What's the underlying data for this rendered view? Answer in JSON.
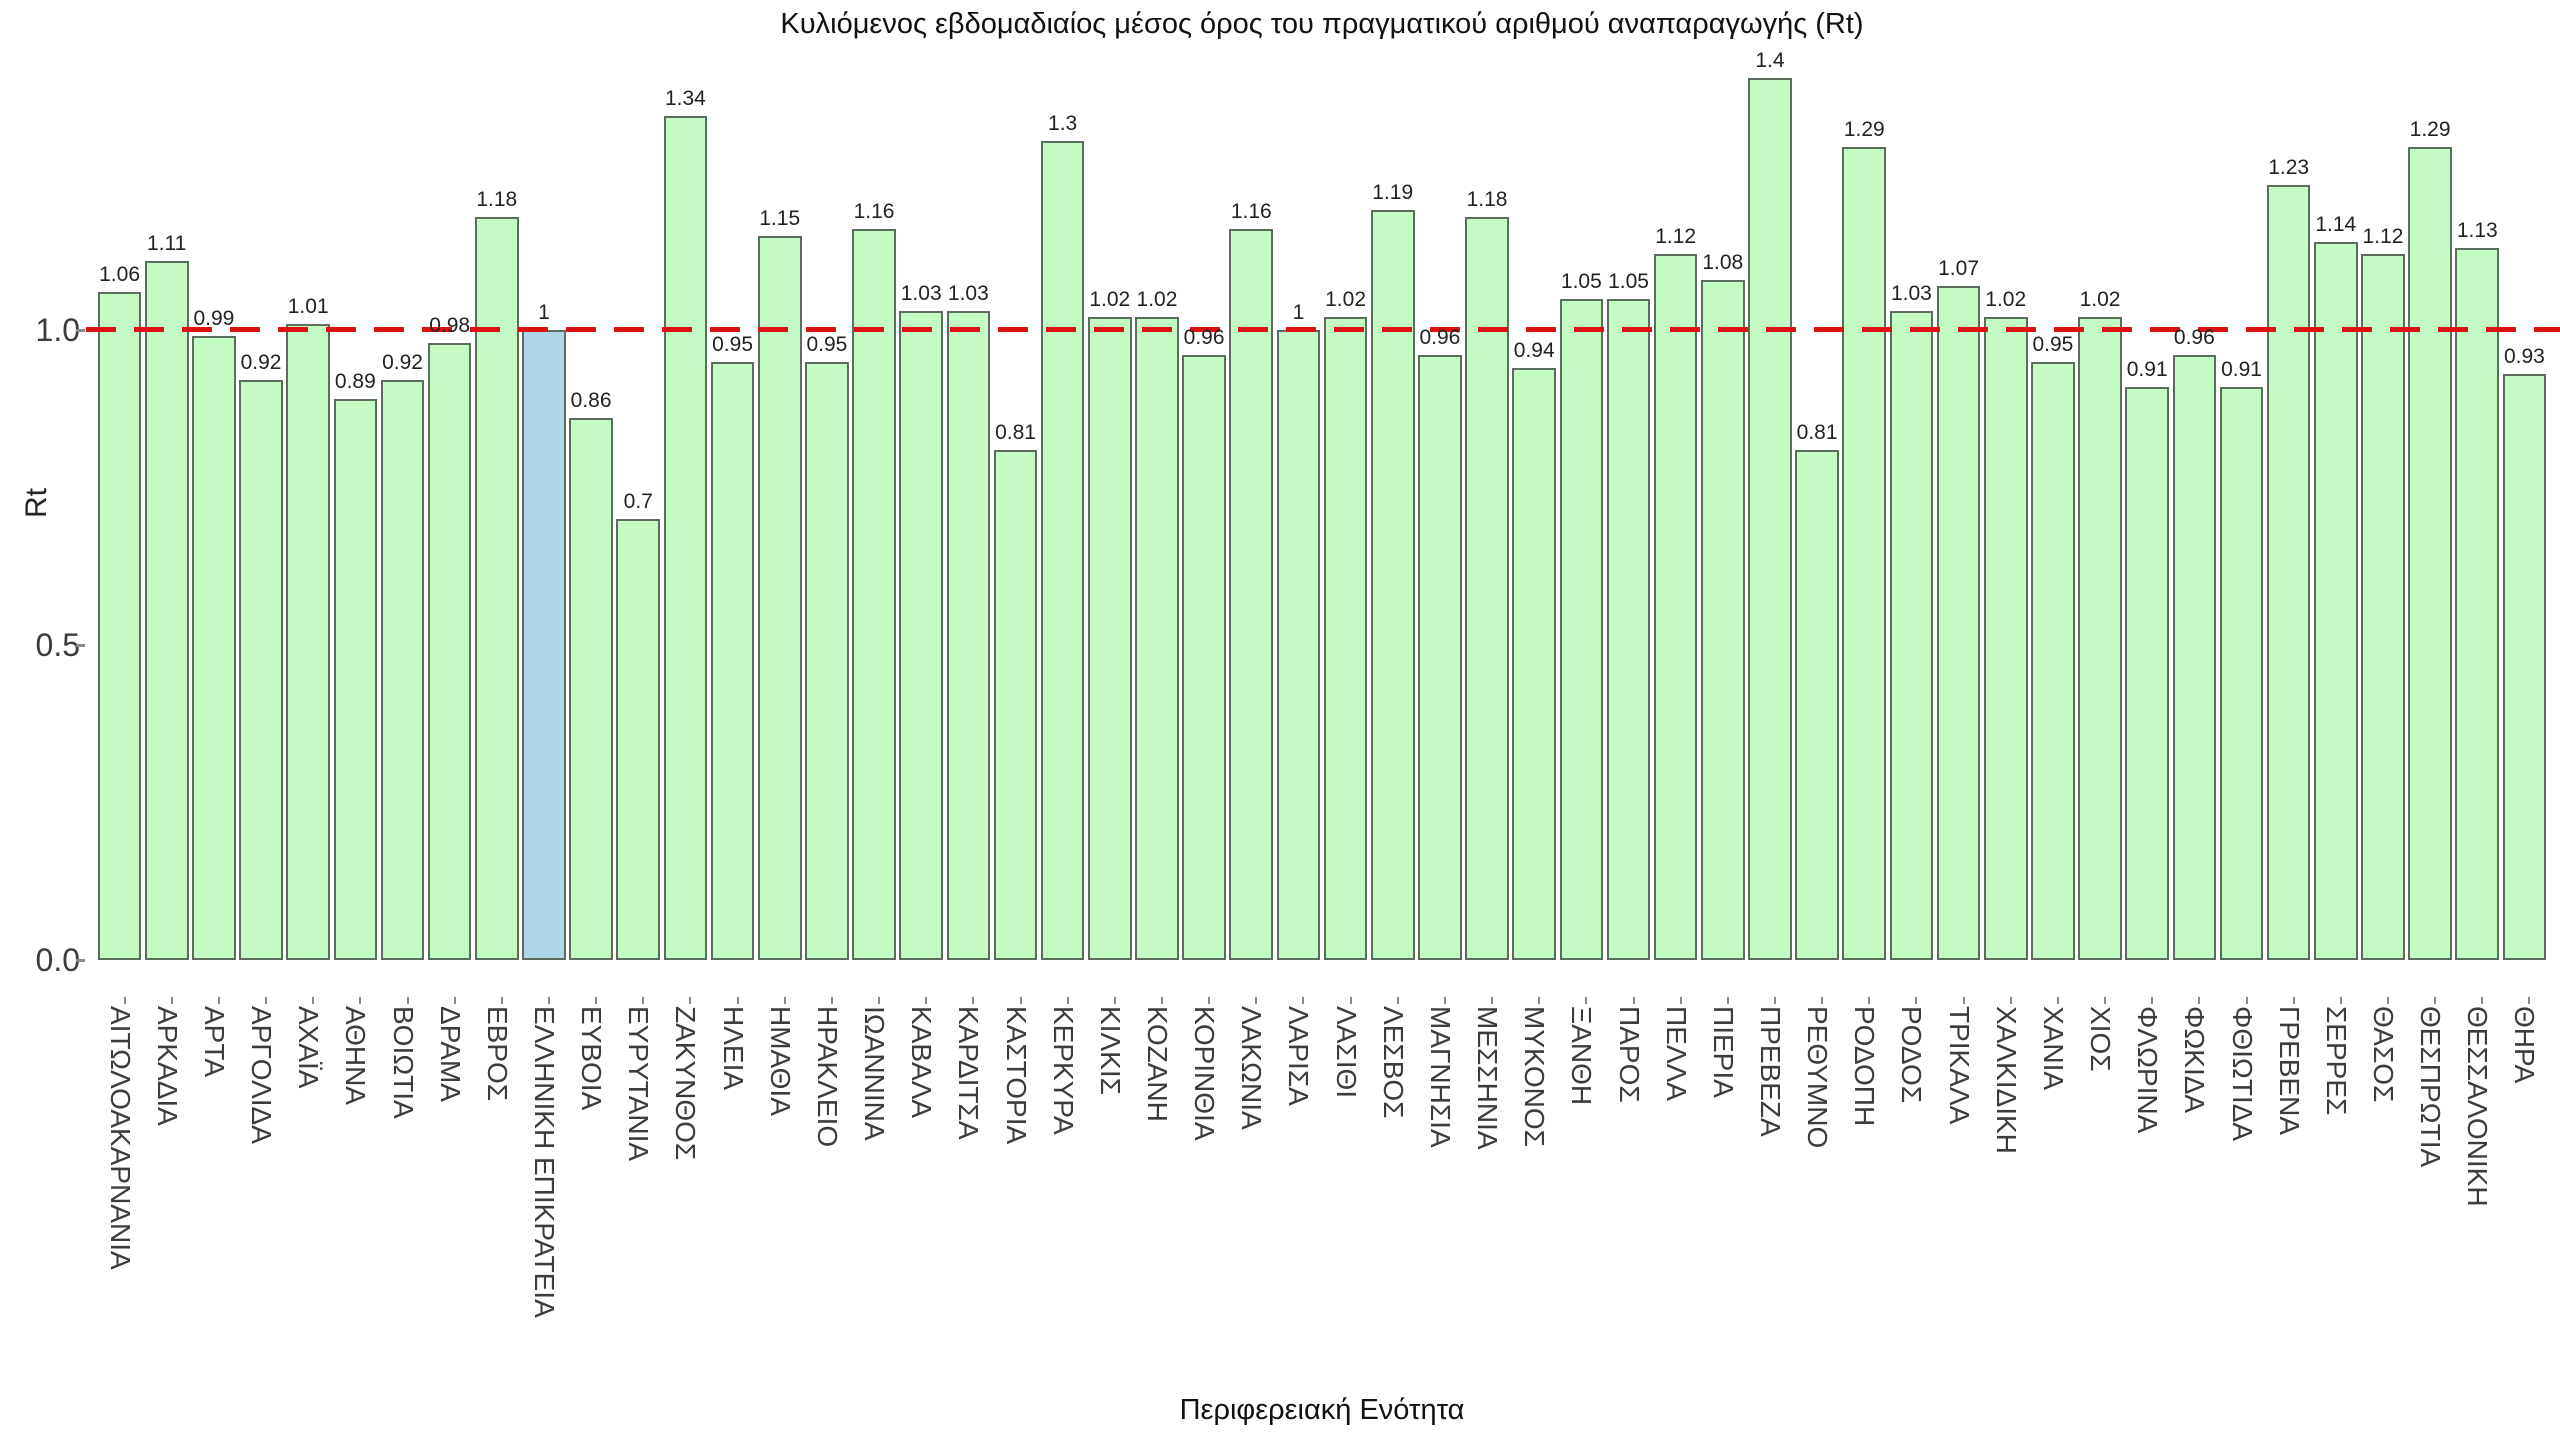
{
  "title": "Κυλιόμενος εβδομαδιαίος μέσος όρος του πραγματικού αριθμού αναπαραγωγής (Rt)",
  "y_axis": {
    "title": "Rt",
    "tick_labels": [
      "1.0",
      "0.5",
      "0.0"
    ]
  },
  "x_axis": {
    "title": "Περιφερειακή Ενότητα"
  },
  "reference_line": {
    "value": 1.0,
    "color": "#dd1111",
    "style": "dashed"
  },
  "colors": {
    "bar_fill": "#c4fbc4",
    "bar_edge": "#5d6d5d",
    "highlight_fill": "#aed6e8",
    "reference_line": "#dd1111",
    "text": "#3c3c3c",
    "background": "#ffffff"
  },
  "chart_data": {
    "type": "bar",
    "title": "Κυλιόμενος εβδομαδιαίος μέσος όρος του πραγματικού αριθμού αναπαραγωγής (Rt)",
    "xlabel": "Περιφερειακή Ενότητα",
    "ylabel": "Rt",
    "ylim": [
      0,
      1.45
    ],
    "yticks": [
      0.0,
      0.5,
      1.0
    ],
    "grid": false,
    "legend": null,
    "reference_line_y": 1.0,
    "highlight_category": "ΕΛΛΗΝΙΚΗ ΕΠΙΚΡΑΤΕΙΑ",
    "categories": [
      "ΑΙΤΩΛΟΑΚΑΡΝΑΝΙΑ",
      "ΑΡΚΑΔΙΑ",
      "ΑΡΤΑ",
      "ΑΡΓΟΛΙΔΑ",
      "ΑΧΑΪΑ",
      "ΑΘΗΝΑ",
      "ΒΟΙΩΤΙΑ",
      "ΔΡΑΜΑ",
      "ΕΒΡΟΣ",
      "ΕΛΛΗΝΙΚΗ ΕΠΙΚΡΑΤΕΙΑ",
      "ΕΥΒΟΙΑ",
      "ΕΥΡΥΤΑΝΙΑ",
      "ΖΑΚΥΝΘΟΣ",
      "ΗΛΕΙΑ",
      "ΗΜΑΘΙΑ",
      "ΗΡΑΚΛΕΙΟ",
      "ΙΩΑΝΝΙΝΑ",
      "ΚΑΒΑΛΑ",
      "ΚΑΡΔΙΤΣΑ",
      "ΚΑΣΤΟΡΙΑ",
      "ΚΕΡΚΥΡΑ",
      "ΚΙΛΚΙΣ",
      "ΚΟΖΑΝΗ",
      "ΚΟΡΙΝΘΙΑ",
      "ΛΑΚΩΝΙΑ",
      "ΛΑΡΙΣΑ",
      "ΛΑΣΙΘΙ",
      "ΛΕΣΒΟΣ",
      "ΜΑΓΝΗΣΙΑ",
      "ΜΕΣΣΗΝΙΑ",
      "ΜΥΚΟΝΟΣ",
      "ΞΑΝΘΗ",
      "ΠΑΡΟΣ",
      "ΠΕΛΛΑ",
      "ΠΙΕΡΙΑ",
      "ΠΡΕΒΕΖΑ",
      "ΡΕΘΥΜΝΟ",
      "ΡΟΔΟΠΗ",
      "ΡΟΔΟΣ",
      "ΤΡΙΚΑΛΑ",
      "ΧΑΛΚΙΔΙΚΗ",
      "ΧΑΝΙΑ",
      "ΧΙΟΣ",
      "ΦΛΩΡΙΝΑ",
      "ΦΩΚΙΔΑ",
      "ΦΘΙΩΤΙΔΑ",
      "ΓΡΕΒΕΝΑ",
      "ΣΕΡΡΕΣ",
      "ΘΑΣΟΣ",
      "ΘΕΣΠΡΩΤΙΑ",
      "ΘΕΣΣΑΛΟΝΙΚΗ",
      "ΘΗΡΑ"
    ],
    "values": [
      1.06,
      1.11,
      0.99,
      0.92,
      1.01,
      0.89,
      0.92,
      0.98,
      1.18,
      1,
      0.86,
      0.7,
      1.34,
      0.95,
      1.15,
      0.95,
      1.16,
      1.03,
      1.03,
      0.81,
      1.3,
      1.02,
      1.02,
      0.96,
      1.16,
      1,
      1.02,
      1.19,
      0.96,
      1.18,
      0.94,
      1.05,
      1.05,
      1.12,
      1.08,
      1.4,
      0.81,
      1.29,
      1.03,
      1.07,
      1.02,
      0.95,
      1.02,
      0.91,
      0.96,
      0.91,
      1.23,
      1.14,
      1.12,
      1.29,
      1.13,
      0.93
    ],
    "bar_labels": [
      "1.06",
      "1.11",
      "0.99",
      "0.92",
      "1.01",
      "0.89",
      "0.92",
      "0.98",
      "1.18",
      "1",
      "0.86",
      "0.7",
      "1.34",
      "0.95",
      "1.15",
      "0.95",
      "1.16",
      "1.03",
      "1.03",
      "0.81",
      "1.3",
      "1.02",
      "1.02",
      "0.96",
      "1.16",
      "1",
      "1.02",
      "1.19",
      "0.96",
      "1.18",
      "0.94",
      "1.05",
      "1.05",
      "1.12",
      "1.08",
      "1.4",
      "0.81",
      "1.29",
      "1.03",
      "1.07",
      "1.02",
      "0.95",
      "1.02",
      "0.91",
      "0.96",
      "0.91",
      "1.23",
      "1.14",
      "1.12",
      "1.29",
      "1.13",
      "0.93"
    ]
  }
}
